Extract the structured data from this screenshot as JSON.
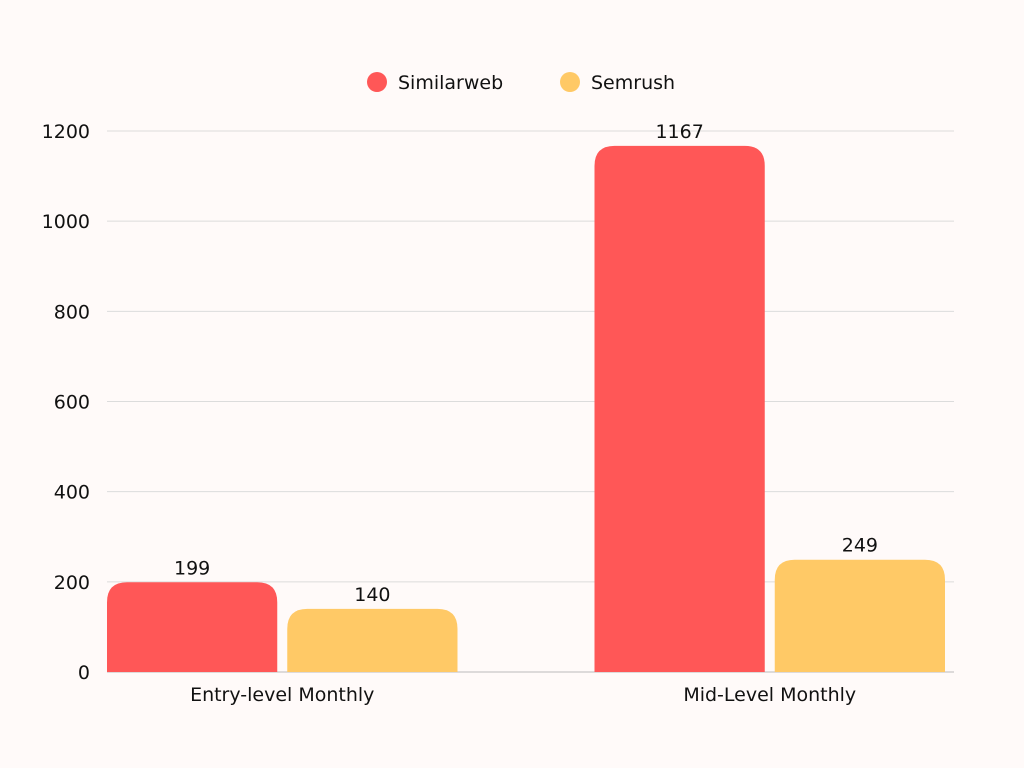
{
  "chart_data": {
    "type": "bar",
    "title": "",
    "xlabel": "",
    "ylabel": "",
    "categories": [
      "Entry-level Monthly",
      "Mid-Level Monthly"
    ],
    "series": [
      {
        "name": "Similarweb",
        "values": [
          199,
          1167
        ],
        "color": "#ff5757"
      },
      {
        "name": "Semrush",
        "values": [
          140,
          249
        ],
        "color": "#ffc966"
      }
    ],
    "ylim": [
      0,
      1200
    ],
    "yticks": [
      0,
      200,
      400,
      600,
      800,
      1000,
      1200
    ],
    "grid": true,
    "legend": "top-center",
    "data_labels": true
  }
}
